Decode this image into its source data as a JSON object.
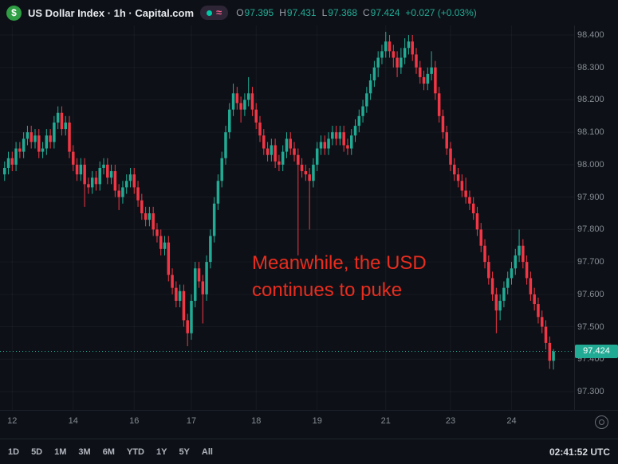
{
  "header": {
    "logo_glyph": "$",
    "title": "US Dollar Index · 1h · Capital.com",
    "ohlc": {
      "o_label": "O",
      "o": "97.395",
      "h_label": "H",
      "h": "97.431",
      "l_label": "L",
      "l": "97.368",
      "c_label": "C",
      "c": "97.424",
      "change": "+0.027 (+0.03%)"
    }
  },
  "annotation": {
    "line1": "Meanwhile, the USD",
    "line2": "continues to puke"
  },
  "price_axis": {
    "labels": [
      "98.400",
      "98.300",
      "98.200",
      "98.100",
      "98.000",
      "97.900",
      "97.800",
      "97.700",
      "97.600",
      "97.500",
      "97.400",
      "97.300"
    ],
    "current_label": "97.424"
  },
  "time_axis": {
    "labels": [
      [
        "12",
        2
      ],
      [
        "14",
        18
      ],
      [
        "16",
        34
      ],
      [
        "17",
        49
      ],
      [
        "18",
        66
      ],
      [
        "19",
        82
      ],
      [
        "21",
        100
      ],
      [
        "23",
        117
      ],
      [
        "24",
        133
      ]
    ]
  },
  "toolbar": {
    "ranges": [
      "1D",
      "5D",
      "1M",
      "3M",
      "6M",
      "YTD",
      "1Y",
      "5Y",
      "All"
    ],
    "clock": "02:41:52 UTC"
  },
  "colors": {
    "up": "#22ab94",
    "down": "#f23645",
    "annotation": "#ea2c1e",
    "badge": "#22ab94",
    "grid": "rgba(255,255,255,0.045)"
  },
  "chart_data": {
    "type": "candlestick",
    "title": "US Dollar Index",
    "interval": "1h",
    "source": "Capital.com",
    "price_min": 97.3,
    "price_max": 98.4,
    "y_ticks": [
      98.4,
      98.3,
      98.2,
      98.1,
      98.0,
      97.9,
      97.8,
      97.7,
      97.6,
      97.5,
      97.4,
      97.3
    ],
    "last": {
      "open": 97.395,
      "high": 97.431,
      "low": 97.368,
      "close": 97.424,
      "change": 0.027,
      "change_pct": 0.03
    },
    "candles": [
      [
        97.97,
        98.01,
        97.95,
        97.99
      ],
      [
        97.99,
        98.04,
        97.97,
        98.02
      ],
      [
        98.02,
        98.04,
        97.98,
        98.0
      ],
      [
        98.0,
        98.07,
        97.98,
        98.05
      ],
      [
        98.05,
        98.07,
        98.02,
        98.04
      ],
      [
        98.04,
        98.1,
        98.02,
        98.08
      ],
      [
        98.08,
        98.12,
        98.06,
        98.1
      ],
      [
        98.1,
        98.12,
        98.05,
        98.07
      ],
      [
        98.07,
        98.11,
        98.05,
        98.09
      ],
      [
        98.09,
        98.11,
        98.02,
        98.04
      ],
      [
        98.04,
        98.07,
        98.02,
        98.05
      ],
      [
        98.05,
        98.11,
        98.03,
        98.09
      ],
      [
        98.09,
        98.11,
        98.05,
        98.07
      ],
      [
        98.07,
        98.15,
        98.05,
        98.13
      ],
      [
        98.13,
        98.18,
        98.11,
        98.16
      ],
      [
        98.16,
        98.18,
        98.09,
        98.11
      ],
      [
        98.11,
        98.15,
        98.09,
        98.13
      ],
      [
        98.13,
        98.15,
        98.02,
        98.04
      ],
      [
        98.04,
        98.06,
        97.98,
        98.0
      ],
      [
        98.0,
        98.02,
        97.95,
        97.97
      ],
      [
        97.97,
        98.02,
        97.95,
        98.0
      ],
      [
        98.0,
        98.02,
        97.87,
        97.94
      ],
      [
        97.94,
        97.96,
        97.91,
        97.93
      ],
      [
        97.93,
        97.98,
        97.91,
        97.96
      ],
      [
        97.96,
        97.98,
        97.92,
        97.94
      ],
      [
        97.94,
        98.01,
        97.92,
        97.99
      ],
      [
        97.99,
        98.02,
        97.97,
        98.0
      ],
      [
        98.0,
        98.02,
        97.94,
        97.96
      ],
      [
        97.96,
        98.0,
        97.94,
        97.98
      ],
      [
        97.98,
        98.0,
        97.9,
        97.92
      ],
      [
        97.92,
        97.94,
        97.86,
        97.9
      ],
      [
        97.9,
        97.95,
        97.88,
        97.93
      ],
      [
        97.93,
        97.97,
        97.91,
        97.95
      ],
      [
        97.95,
        97.99,
        97.93,
        97.97
      ],
      [
        97.97,
        97.99,
        97.91,
        97.93
      ],
      [
        97.93,
        97.95,
        97.87,
        97.89
      ],
      [
        97.89,
        97.91,
        97.83,
        97.85
      ],
      [
        97.85,
        97.87,
        97.81,
        97.83
      ],
      [
        97.83,
        97.87,
        97.81,
        97.85
      ],
      [
        97.85,
        97.87,
        97.78,
        97.8
      ],
      [
        97.8,
        97.82,
        97.76,
        97.78
      ],
      [
        97.78,
        97.8,
        97.72,
        97.74
      ],
      [
        97.74,
        97.78,
        97.72,
        97.76
      ],
      [
        97.76,
        97.78,
        97.64,
        97.66
      ],
      [
        97.66,
        97.68,
        97.6,
        97.62
      ],
      [
        97.62,
        97.64,
        97.56,
        97.58
      ],
      [
        97.58,
        97.63,
        97.56,
        97.61
      ],
      [
        97.61,
        97.63,
        97.5,
        97.52
      ],
      [
        97.52,
        97.54,
        97.44,
        97.48
      ],
      [
        97.48,
        97.6,
        97.46,
        97.58
      ],
      [
        97.58,
        97.7,
        97.56,
        97.68
      ],
      [
        97.68,
        97.7,
        97.62,
        97.64
      ],
      [
        97.64,
        97.66,
        97.51,
        97.6
      ],
      [
        97.6,
        97.72,
        97.58,
        97.7
      ],
      [
        97.7,
        97.8,
        97.68,
        97.78
      ],
      [
        97.78,
        97.9,
        97.76,
        97.88
      ],
      [
        97.88,
        97.97,
        97.86,
        97.95
      ],
      [
        97.95,
        98.04,
        97.93,
        98.02
      ],
      [
        98.02,
        98.12,
        98.0,
        98.1
      ],
      [
        98.1,
        98.19,
        98.08,
        98.17
      ],
      [
        98.17,
        98.25,
        98.15,
        98.22
      ],
      [
        98.22,
        98.24,
        98.17,
        98.19
      ],
      [
        98.19,
        98.21,
        98.13,
        98.17
      ],
      [
        98.17,
        98.22,
        98.15,
        98.2
      ],
      [
        98.2,
        98.27,
        98.18,
        98.22
      ],
      [
        98.22,
        98.24,
        98.15,
        98.17
      ],
      [
        98.17,
        98.19,
        98.11,
        98.13
      ],
      [
        98.13,
        98.15,
        98.07,
        98.09
      ],
      [
        98.09,
        98.11,
        98.03,
        98.05
      ],
      [
        98.05,
        98.07,
        98.01,
        98.03
      ],
      [
        98.03,
        98.08,
        98.01,
        98.06
      ],
      [
        98.06,
        98.08,
        97.99,
        98.01
      ],
      [
        98.01,
        98.03,
        97.98,
        98.0
      ],
      [
        98.0,
        98.06,
        97.98,
        98.04
      ],
      [
        98.04,
        98.1,
        98.02,
        98.08
      ],
      [
        98.08,
        98.1,
        98.03,
        98.05
      ],
      [
        98.05,
        98.07,
        98.01,
        98.03
      ],
      [
        98.03,
        98.05,
        97.72,
        98.0
      ],
      [
        98.0,
        98.02,
        97.96,
        97.98
      ],
      [
        97.98,
        98.0,
        97.95,
        97.97
      ],
      [
        97.97,
        97.99,
        97.8,
        97.95
      ],
      [
        97.95,
        98.02,
        97.93,
        98.0
      ],
      [
        98.0,
        98.07,
        97.98,
        98.05
      ],
      [
        98.05,
        98.09,
        98.03,
        98.07
      ],
      [
        98.07,
        98.09,
        98.03,
        98.05
      ],
      [
        98.05,
        98.1,
        98.03,
        98.08
      ],
      [
        98.08,
        98.12,
        98.06,
        98.1
      ],
      [
        98.1,
        98.12,
        98.06,
        98.08
      ],
      [
        98.08,
        98.12,
        98.06,
        98.1
      ],
      [
        98.1,
        98.12,
        98.04,
        98.06
      ],
      [
        98.06,
        98.08,
        98.03,
        98.05
      ],
      [
        98.05,
        98.11,
        98.03,
        98.09
      ],
      [
        98.09,
        98.14,
        98.07,
        98.12
      ],
      [
        98.12,
        98.17,
        98.1,
        98.15
      ],
      [
        98.15,
        98.2,
        98.13,
        98.18
      ],
      [
        98.18,
        98.24,
        98.16,
        98.22
      ],
      [
        98.22,
        98.28,
        98.2,
        98.26
      ],
      [
        98.26,
        98.32,
        98.24,
        98.3
      ],
      [
        98.3,
        98.35,
        98.27,
        98.33
      ],
      [
        98.33,
        98.37,
        98.31,
        98.35
      ],
      [
        98.35,
        98.41,
        98.33,
        98.38
      ],
      [
        98.38,
        98.4,
        98.33,
        98.35
      ],
      [
        98.35,
        98.37,
        98.3,
        98.33
      ],
      [
        98.33,
        98.35,
        98.27,
        98.3
      ],
      [
        98.3,
        98.36,
        98.28,
        98.33
      ],
      [
        98.33,
        98.39,
        98.31,
        98.36
      ],
      [
        98.36,
        98.4,
        98.34,
        98.38
      ],
      [
        98.38,
        98.4,
        98.32,
        98.34
      ],
      [
        98.34,
        98.36,
        98.28,
        98.3
      ],
      [
        98.3,
        98.32,
        98.25,
        98.27
      ],
      [
        98.27,
        98.29,
        98.23,
        98.25
      ],
      [
        98.25,
        98.3,
        98.23,
        98.28
      ],
      [
        98.28,
        98.35,
        98.26,
        98.3
      ],
      [
        98.3,
        98.32,
        98.2,
        98.22
      ],
      [
        98.22,
        98.24,
        98.13,
        98.15
      ],
      [
        98.15,
        98.17,
        98.08,
        98.1
      ],
      [
        98.1,
        98.12,
        98.03,
        98.05
      ],
      [
        98.05,
        98.07,
        97.98,
        98.0
      ],
      [
        98.0,
        98.02,
        97.95,
        97.97
      ],
      [
        97.97,
        97.99,
        97.93,
        97.95
      ],
      [
        97.95,
        97.97,
        97.9,
        97.92
      ],
      [
        97.92,
        97.96,
        97.88,
        97.9
      ],
      [
        97.9,
        97.92,
        97.86,
        97.88
      ],
      [
        97.88,
        97.9,
        97.83,
        97.85
      ],
      [
        97.85,
        97.87,
        97.78,
        97.8
      ],
      [
        97.8,
        97.82,
        97.73,
        97.75
      ],
      [
        97.75,
        97.77,
        97.68,
        97.7
      ],
      [
        97.7,
        97.72,
        97.63,
        97.65
      ],
      [
        97.65,
        97.67,
        97.58,
        97.6
      ],
      [
        97.6,
        97.62,
        97.48,
        97.55
      ],
      [
        97.55,
        97.6,
        97.52,
        97.58
      ],
      [
        97.58,
        97.64,
        97.56,
        97.62
      ],
      [
        97.62,
        97.67,
        97.6,
        97.65
      ],
      [
        97.65,
        97.7,
        97.63,
        97.68
      ],
      [
        97.68,
        97.74,
        97.66,
        97.72
      ],
      [
        97.72,
        97.8,
        97.7,
        97.75
      ],
      [
        97.75,
        97.77,
        97.68,
        97.7
      ],
      [
        97.7,
        97.72,
        97.63,
        97.65
      ],
      [
        97.65,
        97.67,
        97.58,
        97.6
      ],
      [
        97.6,
        97.62,
        97.55,
        97.57
      ],
      [
        97.57,
        97.59,
        97.51,
        97.53
      ],
      [
        97.53,
        97.55,
        97.48,
        97.5
      ],
      [
        97.5,
        97.52,
        97.43,
        97.45
      ],
      [
        97.45,
        97.47,
        97.37,
        97.395
      ],
      [
        97.395,
        97.431,
        97.368,
        97.424
      ]
    ]
  }
}
